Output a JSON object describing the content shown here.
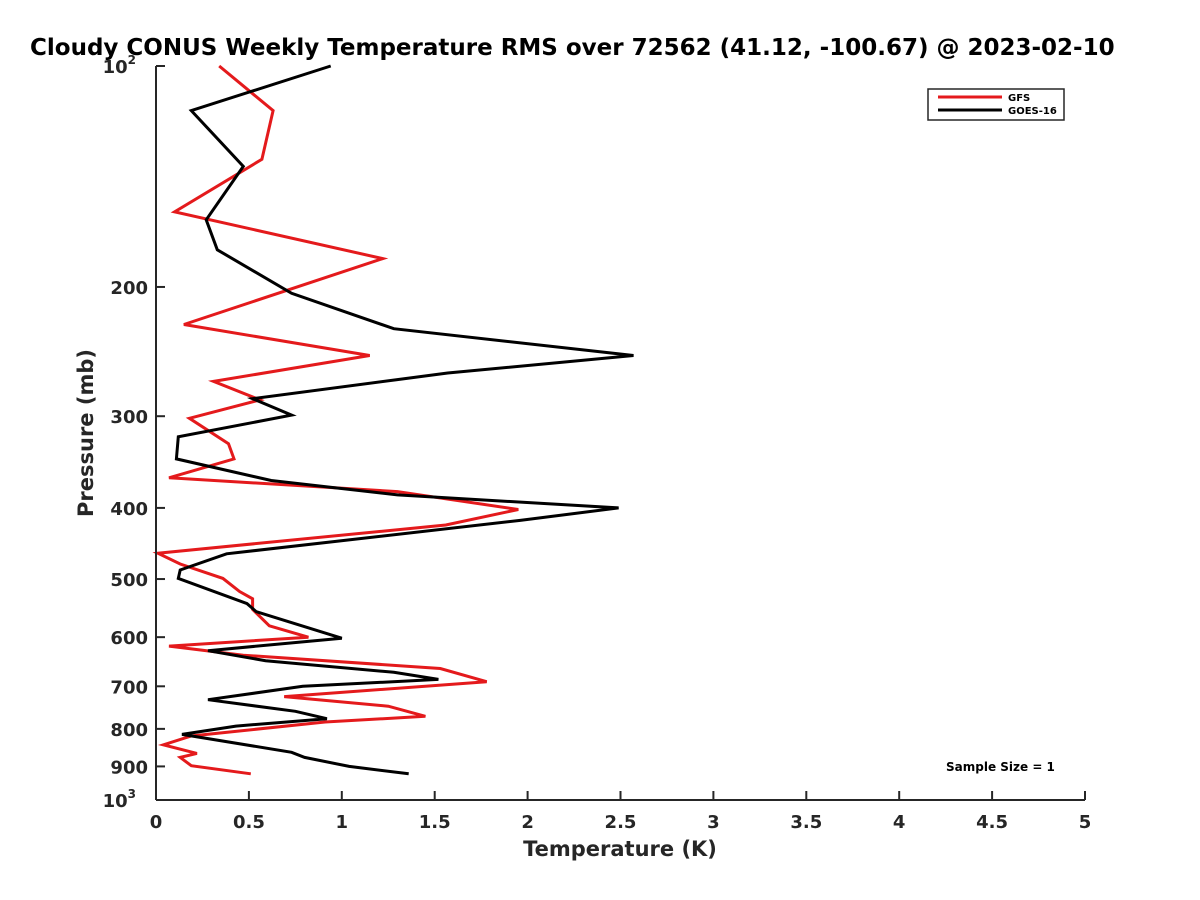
{
  "chart_data": {
    "type": "line",
    "title": "Cloudy CONUS Weekly Temperature RMS over 72562 (41.12, -100.67) @ 2023-02-10",
    "xlabel": "Temperature (K)",
    "ylabel": "Pressure (mb)",
    "xlim": [
      0,
      5
    ],
    "ylim": [
      1000,
      100
    ],
    "y_scale": "log",
    "y_reversed": true,
    "grid": false,
    "legend_position": "top-right",
    "x_ticks": [
      "0",
      "0.5",
      "1",
      "1.5",
      "2",
      "2.5",
      "3",
      "3.5",
      "4",
      "4.5",
      "5"
    ],
    "x_tick_values": [
      0,
      0.5,
      1,
      1.5,
      2,
      2.5,
      3,
      3.5,
      4,
      4.5,
      5
    ],
    "y_ticks": [
      {
        "value": 100,
        "base": "10",
        "exp": "2",
        "label": ""
      },
      {
        "value": 200,
        "base": "",
        "exp": "",
        "label": "200"
      },
      {
        "value": 300,
        "base": "",
        "exp": "",
        "label": "300"
      },
      {
        "value": 400,
        "base": "",
        "exp": "",
        "label": "400"
      },
      {
        "value": 500,
        "base": "",
        "exp": "",
        "label": "500"
      },
      {
        "value": 600,
        "base": "",
        "exp": "",
        "label": "600"
      },
      {
        "value": 700,
        "base": "",
        "exp": "",
        "label": "700"
      },
      {
        "value": 800,
        "base": "",
        "exp": "",
        "label": "800"
      },
      {
        "value": 900,
        "base": "",
        "exp": "",
        "label": "900"
      },
      {
        "value": 1000,
        "base": "10",
        "exp": "3",
        "label": ""
      }
    ],
    "series": [
      {
        "name": "GFS",
        "color": "#e41a1c",
        "points": [
          [
            0.34,
            100
          ],
          [
            0.63,
            115
          ],
          [
            0.57,
            134
          ],
          [
            0.1,
            158
          ],
          [
            1.22,
            183
          ],
          [
            0.15,
            225
          ],
          [
            1.15,
            248
          ],
          [
            0.31,
            269
          ],
          [
            0.56,
            285
          ],
          [
            0.18,
            302
          ],
          [
            0.39,
            327
          ],
          [
            0.42,
            343
          ],
          [
            0.07,
            364
          ],
          [
            1.3,
            380
          ],
          [
            1.95,
            402
          ],
          [
            1.56,
            422
          ],
          [
            0.01,
            461
          ],
          [
            0.13,
            477
          ],
          [
            0.36,
            499
          ],
          [
            0.45,
            520
          ],
          [
            0.52,
            532
          ],
          [
            0.52,
            550
          ],
          [
            0.61,
            579
          ],
          [
            0.82,
            600
          ],
          [
            0.07,
            617
          ],
          [
            0.47,
            635
          ],
          [
            1.53,
            662
          ],
          [
            1.78,
            690
          ],
          [
            0.69,
            723
          ],
          [
            1.25,
            745
          ],
          [
            1.45,
            769
          ],
          [
            0.91,
            783
          ],
          [
            0.19,
            818
          ],
          [
            0.04,
            841
          ],
          [
            0.22,
            864
          ],
          [
            0.13,
            875
          ],
          [
            0.19,
            898
          ],
          [
            0.51,
            921
          ]
        ]
      },
      {
        "name": "GOES-16",
        "color": "#000000",
        "points": [
          [
            0.94,
            100
          ],
          [
            0.19,
            115
          ],
          [
            0.47,
            137
          ],
          [
            0.27,
            162
          ],
          [
            0.33,
            178
          ],
          [
            0.73,
            204
          ],
          [
            1.28,
            228
          ],
          [
            2.57,
            248
          ],
          [
            1.57,
            262
          ],
          [
            0.52,
            284
          ],
          [
            0.73,
            299
          ],
          [
            0.12,
            320
          ],
          [
            0.11,
            343
          ],
          [
            0.62,
            367
          ],
          [
            1.3,
            384
          ],
          [
            2.49,
            400
          ],
          [
            1.96,
            416
          ],
          [
            0.38,
            462
          ],
          [
            0.13,
            486
          ],
          [
            0.12,
            499
          ],
          [
            0.49,
            540
          ],
          [
            0.54,
            554
          ],
          [
            1.0,
            602
          ],
          [
            0.28,
            626
          ],
          [
            0.59,
            646
          ],
          [
            1.28,
            670
          ],
          [
            1.52,
            685
          ],
          [
            0.79,
            700
          ],
          [
            0.28,
            730
          ],
          [
            0.75,
            757
          ],
          [
            0.92,
            775
          ],
          [
            0.43,
            793
          ],
          [
            0.14,
            814
          ],
          [
            0.73,
            861
          ],
          [
            0.8,
            875
          ],
          [
            1.04,
            900
          ],
          [
            1.36,
            921
          ]
        ]
      }
    ],
    "annotation": "Sample Size = 1"
  }
}
